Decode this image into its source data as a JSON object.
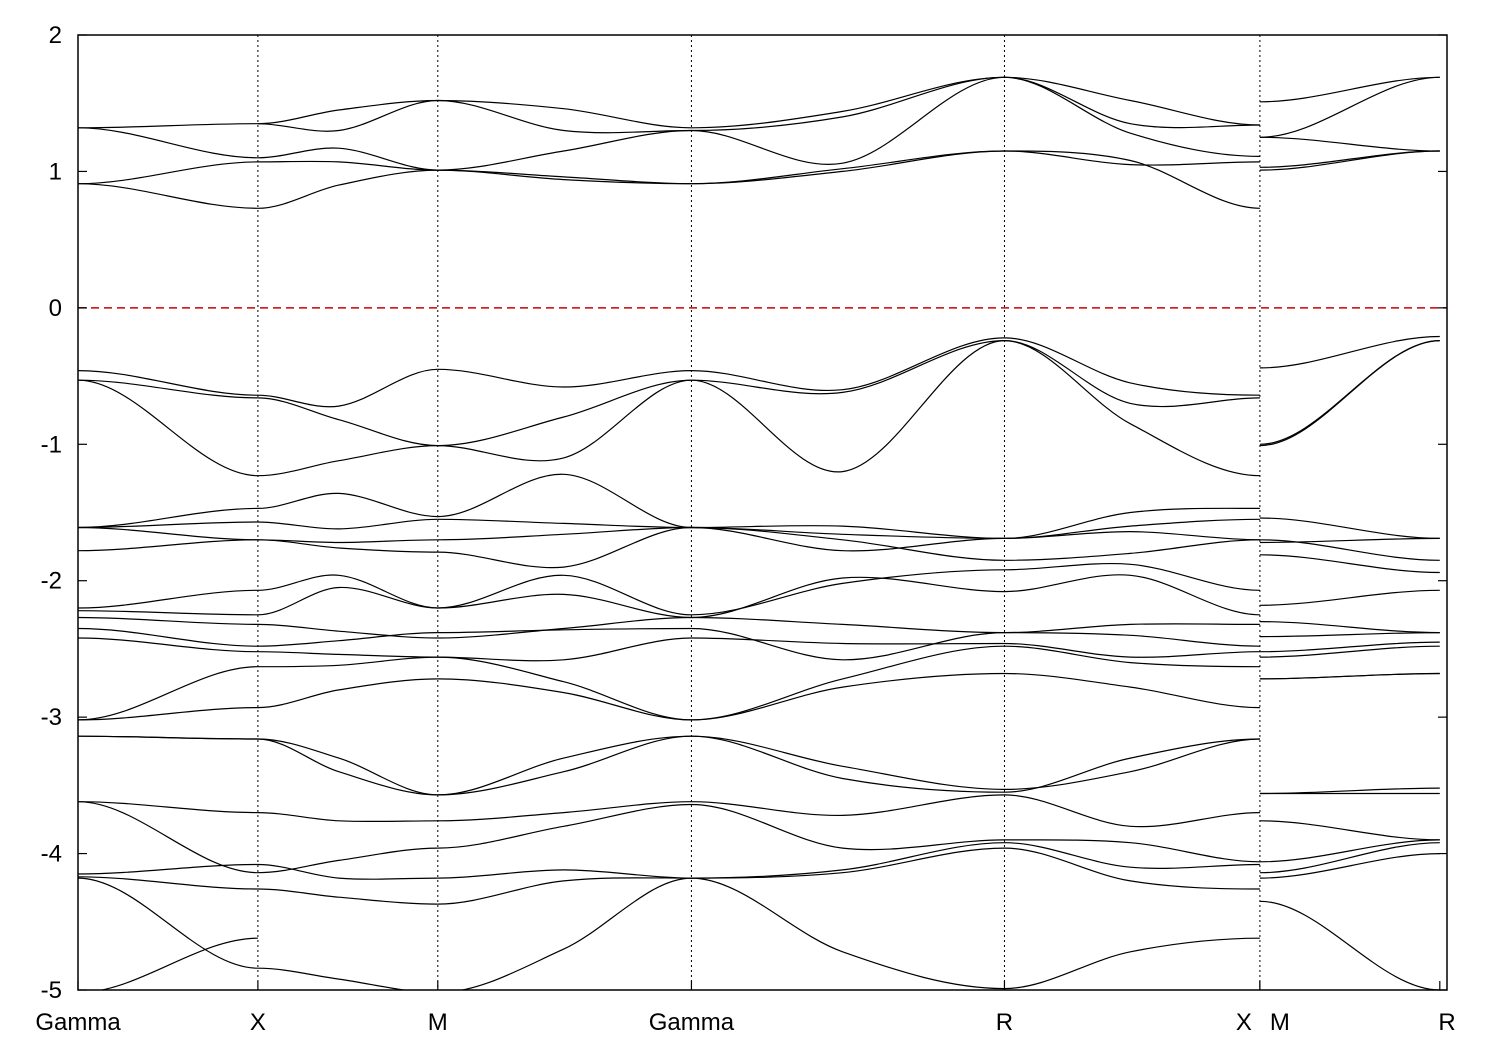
{
  "chart_data": {
    "type": "line",
    "title": "",
    "xlabel": "",
    "ylabel": "",
    "ylim": [
      -5,
      2
    ],
    "yticks": [
      2,
      1,
      0,
      -1,
      -2,
      -3,
      -4,
      -5
    ],
    "y_tick_labels": [
      "2",
      "1",
      "0",
      "-1",
      "-2",
      "-3",
      "-4",
      "-5"
    ],
    "xlim": [
      0,
      7.61
    ],
    "kpoints": [
      {
        "label": "Gamma",
        "x": 0
      },
      {
        "label": "X",
        "x": 1.0
      },
      {
        "label": "M",
        "x": 2.0
      },
      {
        "label": "Gamma",
        "x": 3.41
      },
      {
        "label": "R",
        "x": 5.15
      },
      {
        "label": "X",
        "x": 6.57
      },
      {
        "label": "M",
        "x": 6.57
      },
      {
        "label": "R",
        "x": 7.57
      }
    ],
    "kpoint_label_text": [
      "Gamma",
      "X",
      "M",
      "Gamma",
      "R",
      "X",
      "M",
      "R"
    ],
    "fermi_level": 0,
    "fermi_color": "#cc0000",
    "line_color": "#000000",
    "grid": "vertical dotted at k-points",
    "legend": "none",
    "segments": [
      {
        "x": [
          0,
          1.0
        ],
        "series": [
          [
            1.32,
            1.35
          ],
          [
            1.32,
            1.1
          ],
          [
            0.91,
            1.07
          ],
          [
            0.91,
            0.73
          ],
          [
            -0.46,
            -0.64
          ],
          [
            -0.53,
            -0.66
          ],
          [
            -0.53,
            -1.23
          ],
          [
            -1.61,
            -1.47
          ],
          [
            -1.61,
            -1.57
          ],
          [
            -1.61,
            -1.7
          ],
          [
            -1.78,
            -1.7
          ],
          [
            -2.2,
            -2.07
          ],
          [
            -2.22,
            -2.25
          ],
          [
            -2.27,
            -2.32
          ],
          [
            -2.35,
            -2.48
          ],
          [
            -2.42,
            -2.52
          ],
          [
            -3.02,
            -2.63
          ],
          [
            -3.02,
            -2.93
          ],
          [
            -3.14,
            -3.16
          ],
          [
            -3.14,
            -3.16
          ],
          [
            -3.62,
            -3.7
          ],
          [
            -3.62,
            -4.14
          ],
          [
            -4.15,
            -4.08
          ],
          [
            -4.17,
            -4.26
          ],
          [
            -4.18,
            -4.84
          ],
          [
            -5.02,
            -4.62
          ]
        ]
      },
      {
        "x": [
          1.0,
          1.45,
          2.0
        ],
        "series": [
          [
            1.35,
            1.45,
            1.52
          ],
          [
            1.35,
            1.3,
            1.52
          ],
          [
            1.1,
            1.17,
            1.01
          ],
          [
            1.07,
            1.07,
            1.01
          ],
          [
            0.73,
            0.9,
            1.01
          ],
          [
            -0.64,
            -0.72,
            -0.45
          ],
          [
            -0.66,
            -0.82,
            -1.01
          ],
          [
            -1.23,
            -1.12,
            -1.01
          ],
          [
            -1.47,
            -1.36,
            -1.53
          ],
          [
            -1.57,
            -1.62,
            -1.55
          ],
          [
            -1.7,
            -1.72,
            -1.7
          ],
          [
            -1.7,
            -1.76,
            -1.79
          ],
          [
            -2.07,
            -1.96,
            -2.2
          ],
          [
            -2.25,
            -2.05,
            -2.2
          ],
          [
            -2.32,
            -2.37,
            -2.42
          ],
          [
            -2.48,
            -2.44,
            -2.38
          ],
          [
            -2.52,
            -2.54,
            -2.56
          ],
          [
            -2.63,
            -2.62,
            -2.56
          ],
          [
            -2.93,
            -2.8,
            -2.72
          ],
          [
            -3.16,
            -3.4,
            -3.57
          ],
          [
            -3.16,
            -3.3,
            -3.57
          ],
          [
            -3.7,
            -3.76,
            -3.76
          ],
          [
            -4.14,
            -4.05,
            -3.96
          ],
          [
            -4.08,
            -4.18,
            -4.18
          ],
          [
            -4.26,
            -4.32,
            -4.37
          ],
          [
            -4.84,
            -4.92,
            -5.02
          ]
        ]
      },
      {
        "x": [
          2.0,
          2.7,
          3.41
        ],
        "series": [
          [
            1.52,
            1.46,
            1.32
          ],
          [
            1.52,
            1.3,
            1.3
          ],
          [
            1.01,
            1.15,
            1.3
          ],
          [
            1.01,
            0.96,
            0.91
          ],
          [
            1.01,
            0.94,
            0.91
          ],
          [
            -0.45,
            -0.58,
            -0.46
          ],
          [
            -1.01,
            -0.8,
            -0.53
          ],
          [
            -1.01,
            -1.1,
            -0.53
          ],
          [
            -1.53,
            -1.22,
            -1.61
          ],
          [
            -1.55,
            -1.58,
            -1.61
          ],
          [
            -1.7,
            -1.66,
            -1.61
          ],
          [
            -1.79,
            -1.9,
            -1.61
          ],
          [
            -2.2,
            -1.96,
            -2.25
          ],
          [
            -2.2,
            -2.1,
            -2.27
          ],
          [
            -2.42,
            -2.35,
            -2.27
          ],
          [
            -2.38,
            -2.36,
            -2.35
          ],
          [
            -2.56,
            -2.58,
            -2.42
          ],
          [
            -2.56,
            -2.74,
            -3.02
          ],
          [
            -2.72,
            -2.82,
            -3.02
          ],
          [
            -3.57,
            -3.3,
            -3.14
          ],
          [
            -3.57,
            -3.4,
            -3.14
          ],
          [
            -3.76,
            -3.7,
            -3.62
          ],
          [
            -3.96,
            -3.8,
            -3.64
          ],
          [
            -4.18,
            -4.12,
            -4.18
          ],
          [
            -4.37,
            -4.2,
            -4.18
          ],
          [
            -5.02,
            -4.7,
            -4.18
          ]
        ]
      },
      {
        "x": [
          3.41,
          4.25,
          5.15
        ],
        "series": [
          [
            1.32,
            1.44,
            1.69
          ],
          [
            1.3,
            1.06,
            1.69
          ],
          [
            1.3,
            1.4,
            1.69
          ],
          [
            0.91,
            1.0,
            1.15
          ],
          [
            0.91,
            1.02,
            1.15
          ],
          [
            -0.46,
            -0.6,
            -0.22
          ],
          [
            -0.53,
            -0.62,
            -0.24
          ],
          [
            -0.53,
            -1.2,
            -0.24
          ],
          [
            -1.61,
            -1.6,
            -1.69
          ],
          [
            -1.61,
            -1.66,
            -1.69
          ],
          [
            -1.61,
            -1.78,
            -1.69
          ],
          [
            -1.61,
            -1.7,
            -1.85
          ],
          [
            -2.25,
            -2.02,
            -1.92
          ],
          [
            -2.27,
            -1.98,
            -2.08
          ],
          [
            -2.27,
            -2.32,
            -2.38
          ],
          [
            -2.35,
            -2.58,
            -2.38
          ],
          [
            -2.42,
            -2.46,
            -2.46
          ],
          [
            -3.02,
            -2.72,
            -2.48
          ],
          [
            -3.02,
            -2.78,
            -2.68
          ],
          [
            -3.14,
            -3.36,
            -3.53
          ],
          [
            -3.14,
            -3.45,
            -3.55
          ],
          [
            -3.62,
            -3.72,
            -3.57
          ],
          [
            -3.64,
            -3.96,
            -3.9
          ],
          [
            -4.18,
            -4.12,
            -3.92
          ],
          [
            -4.18,
            -4.14,
            -3.96
          ],
          [
            -4.18,
            -4.72,
            -4.99
          ]
        ]
      },
      {
        "x": [
          5.15,
          5.85,
          6.57
        ],
        "series": [
          [
            1.69,
            1.52,
            1.34
          ],
          [
            1.69,
            1.35,
            1.34
          ],
          [
            1.69,
            1.28,
            1.11
          ],
          [
            1.15,
            1.05,
            1.07
          ],
          [
            1.15,
            1.08,
            0.73
          ],
          [
            -0.22,
            -0.55,
            -0.64
          ],
          [
            -0.24,
            -0.7,
            -0.66
          ],
          [
            -0.24,
            -0.85,
            -1.23
          ],
          [
            -1.69,
            -1.5,
            -1.47
          ],
          [
            -1.69,
            -1.6,
            -1.55
          ],
          [
            -1.69,
            -1.64,
            -1.7
          ],
          [
            -1.85,
            -1.8,
            -1.7
          ],
          [
            -1.92,
            -1.88,
            -2.07
          ],
          [
            -2.08,
            -1.96,
            -2.25
          ],
          [
            -2.38,
            -2.32,
            -2.32
          ],
          [
            -2.38,
            -2.4,
            -2.48
          ],
          [
            -2.46,
            -2.56,
            -2.52
          ],
          [
            -2.48,
            -2.6,
            -2.63
          ],
          [
            -2.68,
            -2.78,
            -2.93
          ],
          [
            -3.53,
            -3.4,
            -3.16
          ],
          [
            -3.55,
            -3.3,
            -3.16
          ],
          [
            -3.57,
            -3.8,
            -3.7
          ],
          [
            -3.9,
            -3.92,
            -4.06
          ],
          [
            -3.92,
            -4.1,
            -4.08
          ],
          [
            -3.96,
            -4.2,
            -4.26
          ],
          [
            -4.99,
            -4.72,
            -4.62
          ]
        ]
      },
      {
        "x": [
          6.57,
          7.57
        ],
        "series": [
          [
            1.51,
            1.69
          ],
          [
            1.25,
            1.69
          ],
          [
            1.25,
            1.15
          ],
          [
            1.03,
            1.15
          ],
          [
            1.01,
            1.15
          ],
          [
            -0.44,
            -0.21
          ],
          [
            -1.0,
            -0.24
          ],
          [
            -1.01,
            -0.24
          ],
          [
            -1.54,
            -1.69
          ],
          [
            -1.72,
            -1.69
          ],
          [
            -1.7,
            -1.85
          ],
          [
            -1.81,
            -1.94
          ],
          [
            -2.18,
            -2.07
          ],
          [
            -2.3,
            -2.38
          ],
          [
            -2.41,
            -2.38
          ],
          [
            -2.52,
            -2.45
          ],
          [
            -2.56,
            -2.48
          ],
          [
            -2.72,
            -2.68
          ],
          [
            -2.72,
            -2.68
          ],
          [
            -3.56,
            -3.56
          ],
          [
            -3.56,
            -3.52
          ],
          [
            -3.76,
            -3.9
          ],
          [
            -4.06,
            -3.9
          ],
          [
            -4.14,
            -3.92
          ],
          [
            -4.18,
            -4.0
          ],
          [
            -4.35,
            -5.0
          ]
        ]
      }
    ]
  }
}
